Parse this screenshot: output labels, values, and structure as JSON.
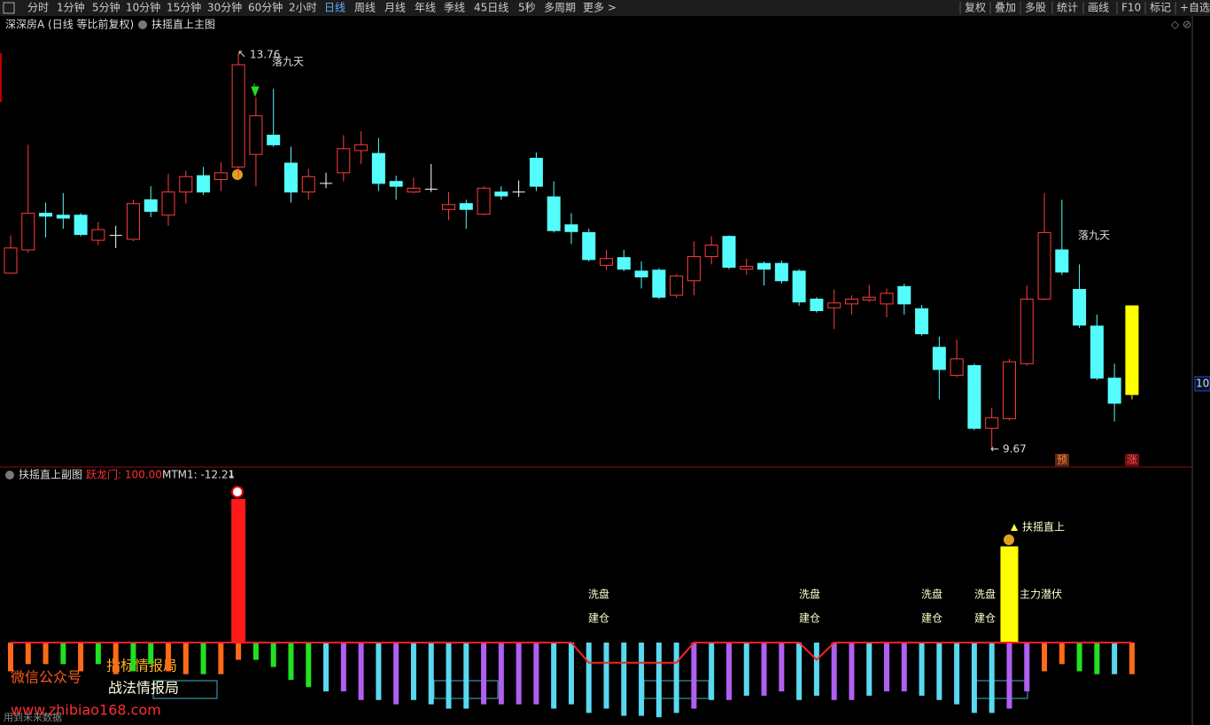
{
  "toolbar": {
    "periods": [
      "分时",
      "1分钟",
      "5分钟",
      "10分钟",
      "15分钟",
      "30分钟",
      "60分钟",
      "2小时",
      "日线",
      "周线",
      "月线",
      "年线",
      "季线",
      "45日线",
      "5秒",
      "多周期",
      "更多 >"
    ],
    "active_period": 8,
    "tools": [
      "复权",
      "叠加",
      "多股",
      "统计",
      "画线",
      "F10",
      "标记",
      "+自选"
    ]
  },
  "main_chart": {
    "title": "深深房A (日线 等比前复权)",
    "indicator": "扶摇直上主图",
    "max_label": "13.76",
    "min_label": "9.67",
    "price_tag": "10.",
    "signals": [
      "落九天",
      "落九天"
    ],
    "badges": [
      "预",
      "涨"
    ],
    "up_color": "#ff3c3c",
    "down_color": "#54fcfc",
    "doji_color": "#ffffff",
    "last_color": "#ffff00",
    "open": [
      11.48,
      11.72,
      12.1,
      12.08,
      12.08,
      11.82,
      11.87,
      11.83,
      12.24,
      12.08,
      12.32,
      12.49,
      12.45,
      12.58,
      12.71,
      12.91,
      12.62,
      12.32,
      12.41,
      12.52,
      12.75,
      12.72,
      12.43,
      12.32,
      12.35,
      12.14,
      12.2,
      12.09,
      12.32,
      12.32,
      12.67,
      12.27,
      11.98,
      11.9,
      11.56,
      11.64,
      11.5,
      11.51,
      11.25,
      11.4,
      11.65,
      11.86,
      11.52,
      11.58,
      11.58,
      11.5,
      11.21,
      11.12,
      11.16,
      11.2,
      11.16,
      11.34,
      11.11,
      10.71,
      10.42,
      10.52,
      9.87,
      9.97,
      10.54,
      11.21,
      11.72,
      11.31,
      10.93,
      10.39,
      10.22
    ],
    "high": [
      11.87,
      12.81,
      12.21,
      12.31,
      12.1,
      12.01,
      11.97,
      12.24,
      12.38,
      12.51,
      12.54,
      12.58,
      12.63,
      13.76,
      13.3,
      13.39,
      12.79,
      12.56,
      12.52,
      12.91,
      12.95,
      12.88,
      12.49,
      12.47,
      12.61,
      12.32,
      12.24,
      12.38,
      12.38,
      12.44,
      12.73,
      12.43,
      12.1,
      11.94,
      11.72,
      11.72,
      11.6,
      11.53,
      11.47,
      11.81,
      11.86,
      11.87,
      11.63,
      11.6,
      11.61,
      11.52,
      11.23,
      11.31,
      11.25,
      11.36,
      11.32,
      11.37,
      11.15,
      10.82,
      10.79,
      10.54,
      10.08,
      10.59,
      11.35,
      12.31,
      12.24,
      11.57,
      11.05,
      10.54,
      11.14
    ],
    "low": [
      11.48,
      11.69,
      11.85,
      11.94,
      11.86,
      11.77,
      11.74,
      11.81,
      12.06,
      11.97,
      12.2,
      12.29,
      12.33,
      12.47,
      12.38,
      12.79,
      12.21,
      12.24,
      12.36,
      12.43,
      12.61,
      12.33,
      12.24,
      12.31,
      12.32,
      12.03,
      11.94,
      12.08,
      12.24,
      12.27,
      12.33,
      11.9,
      11.78,
      11.6,
      11.51,
      11.5,
      11.32,
      11.21,
      11.22,
      11.25,
      11.57,
      11.52,
      11.46,
      11.35,
      11.37,
      11.14,
      11.07,
      10.9,
      11.05,
      11.18,
      11.02,
      11.05,
      10.83,
      10.17,
      10.4,
      9.85,
      9.67,
      9.95,
      10.52,
      11.2,
      11.46,
      10.91,
      10.37,
      9.94,
      10.17
    ],
    "close": [
      11.74,
      12.1,
      12.07,
      12.05,
      11.88,
      11.93,
      11.87,
      12.2,
      12.12,
      12.32,
      12.48,
      12.32,
      12.52,
      13.64,
      13.11,
      12.81,
      12.32,
      12.48,
      12.41,
      12.77,
      12.81,
      12.41,
      12.38,
      12.36,
      12.35,
      12.19,
      12.14,
      12.36,
      12.28,
      12.32,
      12.38,
      11.92,
      11.91,
      11.62,
      11.63,
      11.52,
      11.44,
      11.23,
      11.45,
      11.65,
      11.77,
      11.54,
      11.55,
      11.52,
      11.4,
      11.18,
      11.09,
      11.17,
      11.21,
      11.23,
      11.27,
      11.16,
      10.85,
      10.48,
      10.59,
      9.87,
      9.98,
      10.56,
      11.21,
      11.9,
      11.49,
      10.94,
      10.39,
      10.13,
      11.14
    ]
  },
  "sub_chart": {
    "title": "扶摇直上副图",
    "legend_a": "跃龙门: 100.00",
    "legend_b": "MTM1: -12.21",
    "bars": [
      -20,
      -15,
      -15,
      -15,
      -20,
      -15,
      -22,
      -20,
      -15,
      -20,
      -22,
      -22,
      -22,
      -12,
      -12,
      -17,
      -26,
      -31,
      -34,
      -34,
      -40,
      -40,
      -43,
      -40,
      -43,
      -46,
      -46,
      -43,
      -43,
      -43,
      -43,
      -46,
      -43,
      -49,
      -46,
      -51,
      -51,
      -52,
      -49,
      -46,
      -40,
      -40,
      -37,
      -37,
      -34,
      -40,
      -37,
      -40,
      -40,
      -37,
      -34,
      -34,
      -37,
      -40,
      -43,
      -49,
      -49,
      -46,
      -34,
      -20,
      -15,
      -20,
      -22,
      -22,
      -22
    ],
    "bar_colors": [
      "#ff6a1a",
      "#ff6a1a",
      "#ff6a1a",
      "#22e022",
      "#ff6a1a",
      "#22e022",
      "#ff6a1a",
      "#22e022",
      "#22e022",
      "#ff6a1a",
      "#ff6a1a",
      "#22e022",
      "#ff6a1a",
      "#ff6a1a",
      "#22e022",
      "#22e022",
      "#22e022",
      "#22e022",
      "#5ad8f0",
      "#b060f0",
      "#b060f0",
      "#5ad8f0",
      "#b060f0",
      "#5ad8f0",
      "#5ad8f0",
      "#5ad8f0",
      "#5ad8f0",
      "#b060f0",
      "#b060f0",
      "#b060f0",
      "#b060f0",
      "#5ad8f0",
      "#5ad8f0",
      "#5ad8f0",
      "#5ad8f0",
      "#5ad8f0",
      "#5ad8f0",
      "#5ad8f0",
      "#5ad8f0",
      "#b060f0",
      "#5ad8f0",
      "#b060f0",
      "#5ad8f0",
      "#b060f0",
      "#b060f0",
      "#5ad8f0",
      "#5ad8f0",
      "#b060f0",
      "#b060f0",
      "#5ad8f0",
      "#b060f0",
      "#b060f0",
      "#5ad8f0",
      "#5ad8f0",
      "#5ad8f0",
      "#5ad8f0",
      "#5ad8f0",
      "#b060f0",
      "#b060f0",
      "#ff6a1a",
      "#ff6a1a",
      "#22e022",
      "#22e022",
      "#5ad8f0",
      "#ff6a1a"
    ],
    "spike_values": [
      null,
      null,
      null,
      null,
      null,
      null,
      null,
      null,
      null,
      null,
      null,
      null,
      null,
      100,
      null,
      null,
      null,
      null,
      null,
      null,
      null,
      null,
      null,
      null,
      null,
      null,
      null,
      null,
      null,
      null,
      null,
      null,
      null,
      null,
      null,
      null,
      null,
      null,
      null,
      null,
      null,
      null,
      null,
      null,
      null,
      null,
      null,
      null,
      null,
      null,
      null,
      null,
      null,
      null,
      null,
      null,
      null,
      67,
      null,
      null,
      null,
      null,
      null,
      null,
      null
    ],
    "spike_colors": [
      "#ff1a1a",
      "#ffff00"
    ],
    "line_values": [
      0,
      0,
      0,
      0,
      0,
      0,
      0,
      0,
      0,
      0,
      0,
      0,
      0,
      0,
      0,
      0,
      0,
      0,
      0,
      0,
      0,
      0,
      0,
      0,
      0,
      0,
      0,
      0,
      0,
      0,
      0,
      0,
      0,
      -14,
      -14,
      -14,
      -14,
      -14,
      -14,
      0,
      0,
      0,
      0,
      0,
      0,
      0,
      -12,
      0,
      0,
      0,
      0,
      0,
      0,
      0,
      0,
      0,
      0,
      0,
      0,
      0,
      0,
      0,
      0,
      0,
      0
    ],
    "line_color": "#ff2020",
    "annotations": [
      [
        "洗盘",
        "建仓"
      ],
      [
        "洗盘",
        "建仓"
      ],
      [
        "洗盘",
        "建仓"
      ],
      [
        "洗盘",
        "建仓"
      ]
    ],
    "signal_up": "扶摇直上",
    "signal_hidden": "主力潜伏"
  },
  "watermark": {
    "wechat": "微信公众号",
    "name_a": "指标情报局",
    "name_b": "战法情报局",
    "site": "www.zhibiao168.com",
    "note": "用到未来数据"
  }
}
